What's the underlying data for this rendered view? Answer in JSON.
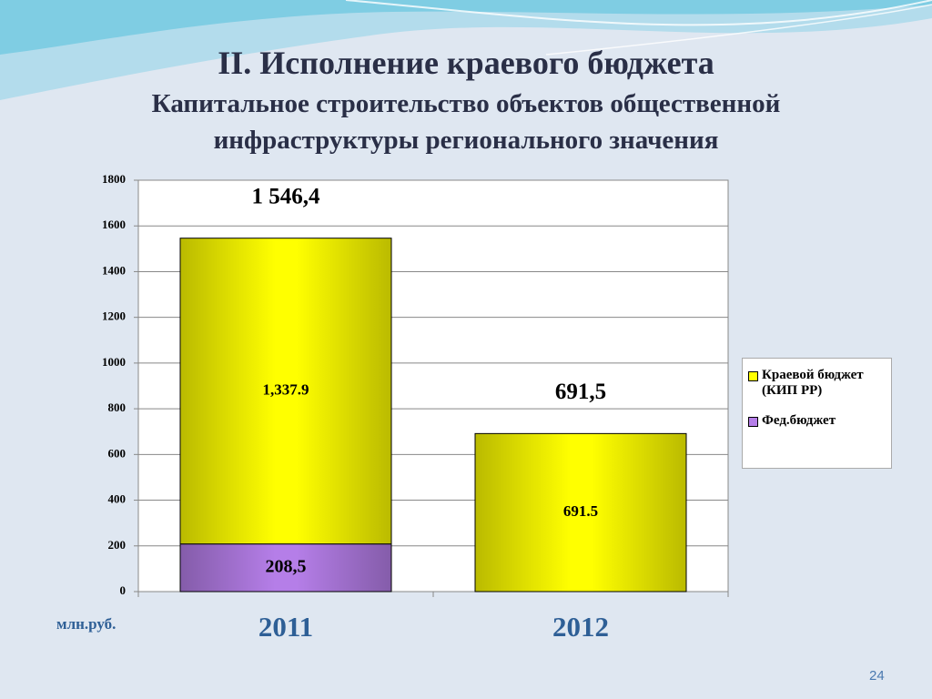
{
  "chart_data": {
    "type": "stacked-bar",
    "title": "II. Исполнение краевого бюджета",
    "subtitle": "Капитальное строительство объектов общественной инфраструктуры регионального значения",
    "y_label": "млн.руб.",
    "categories": [
      "2011",
      "2012"
    ],
    "series": [
      {
        "name": "Фед.бюджет",
        "color": "#b57ee8",
        "values": [
          208.5,
          null
        ],
        "value_labels": [
          "208,5",
          null
        ]
      },
      {
        "name": "Краевой бюджет (КИП РР)",
        "color": "#ffff00",
        "values": [
          1337.9,
          691.5
        ],
        "value_labels": [
          "1,337.9",
          "691.5"
        ]
      }
    ],
    "totals": {
      "values": [
        1546.4,
        691.5
      ],
      "value_labels": [
        "1 546,4",
        "691,5"
      ]
    },
    "ylim": [
      0,
      1800
    ],
    "yticks": [
      0,
      200,
      400,
      600,
      800,
      1000,
      1200,
      1400,
      1600,
      1800
    ],
    "grid": true,
    "legend": "right"
  },
  "slide_number": "24"
}
